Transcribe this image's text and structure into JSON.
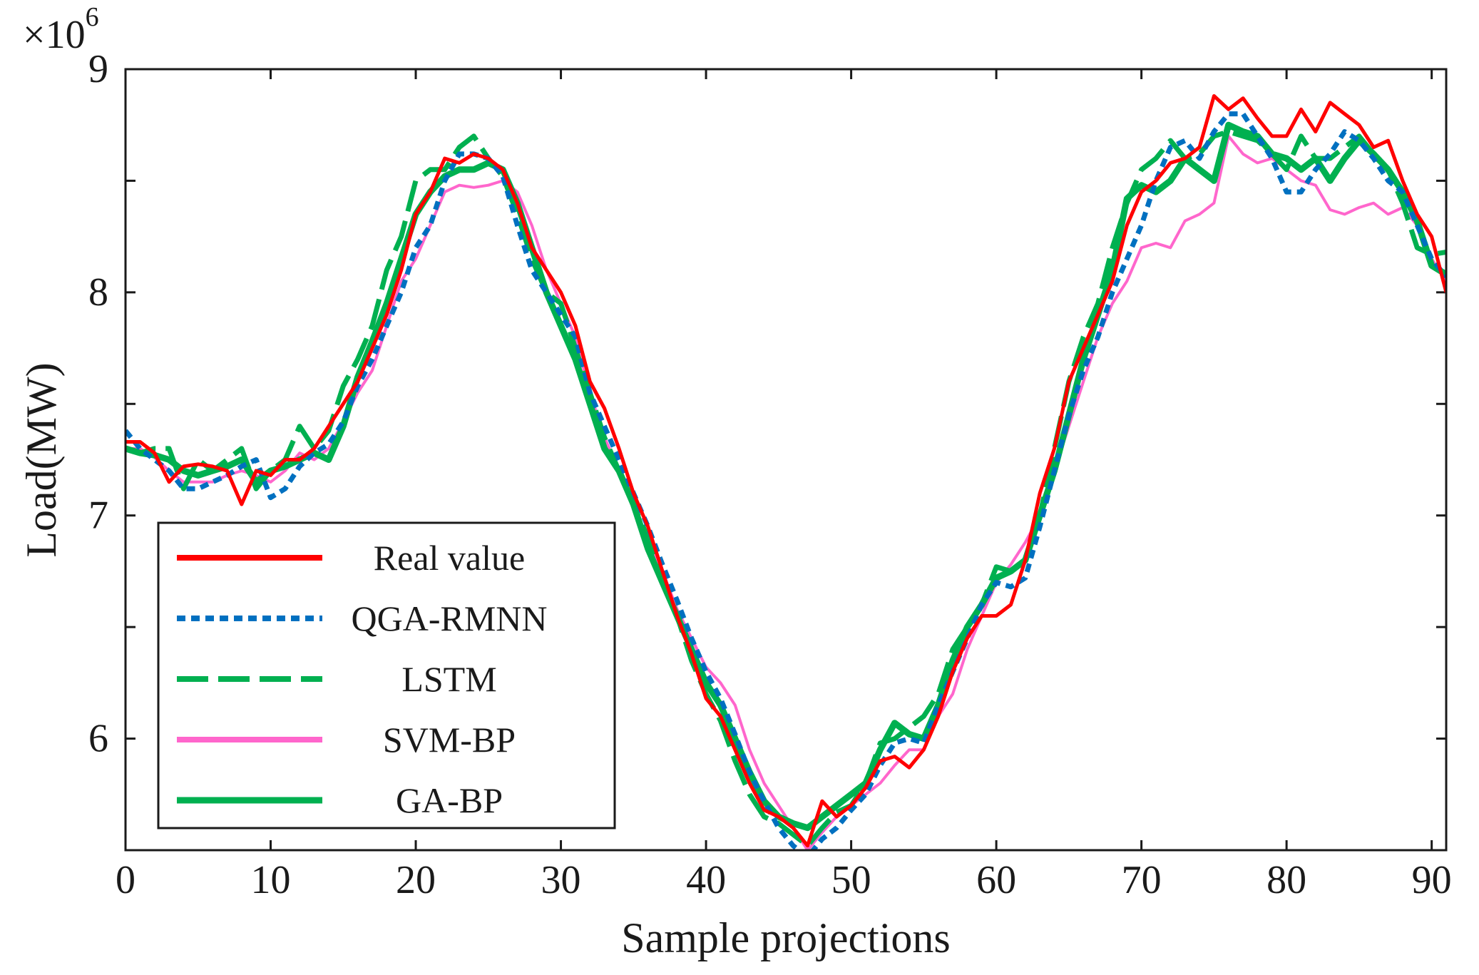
{
  "chart_data": {
    "type": "line",
    "title": "",
    "xlabel": "Sample projections",
    "ylabel": "Load(MW)",
    "y_multiplier_label": "×10",
    "y_multiplier_exponent": "6",
    "xlim": [
      0,
      91
    ],
    "ylim": [
      5.5,
      9.0
    ],
    "x_ticks": [
      0,
      10,
      20,
      30,
      40,
      50,
      60,
      70,
      80,
      90
    ],
    "x_tick_labels": [
      "0",
      "10",
      "20",
      "30",
      "40",
      "50",
      "60",
      "70",
      "80",
      "90"
    ],
    "y_ticks": [
      5.5,
      6.0,
      6.5,
      7.0,
      7.5,
      8.0,
      8.5,
      9.0
    ],
    "y_tick_labels": [
      "",
      "6",
      "",
      "7",
      "",
      "8",
      "",
      "9"
    ],
    "grid": false,
    "legend_position": "bottom-left",
    "x": [
      0,
      1,
      2,
      3,
      4,
      5,
      6,
      7,
      8,
      9,
      10,
      11,
      12,
      13,
      14,
      15,
      16,
      17,
      18,
      19,
      20,
      21,
      22,
      23,
      24,
      25,
      26,
      27,
      28,
      29,
      30,
      31,
      32,
      33,
      34,
      35,
      36,
      37,
      38,
      39,
      40,
      41,
      42,
      43,
      44,
      45,
      46,
      47,
      48,
      49,
      50,
      51,
      52,
      53,
      54,
      55,
      56,
      57,
      58,
      59,
      60,
      61,
      62,
      63,
      64,
      65,
      66,
      67,
      68,
      69,
      70,
      71,
      72,
      73,
      74,
      75,
      76,
      77,
      78,
      79,
      80,
      81,
      82,
      83,
      84,
      85,
      86,
      87,
      88,
      89,
      90,
      91
    ],
    "series": [
      {
        "name": "Real value",
        "color": "#ff0000",
        "style": "solid",
        "values": [
          7.33,
          7.33,
          7.28,
          7.15,
          7.22,
          7.23,
          7.22,
          7.2,
          7.05,
          7.2,
          7.18,
          7.25,
          7.25,
          7.3,
          7.4,
          7.5,
          7.6,
          7.75,
          7.9,
          8.1,
          8.35,
          8.45,
          8.6,
          8.58,
          8.62,
          8.6,
          8.55,
          8.4,
          8.2,
          8.1,
          8.0,
          7.85,
          7.6,
          7.48,
          7.3,
          7.1,
          6.95,
          6.75,
          6.55,
          6.38,
          6.18,
          6.1,
          5.95,
          5.8,
          5.68,
          5.65,
          5.6,
          5.52,
          5.72,
          5.65,
          5.7,
          5.78,
          5.9,
          5.92,
          5.87,
          5.95,
          6.1,
          6.3,
          6.45,
          6.55,
          6.55,
          6.6,
          6.8,
          7.1,
          7.3,
          7.6,
          7.75,
          7.9,
          8.05,
          8.3,
          8.45,
          8.5,
          8.58,
          8.6,
          8.65,
          8.88,
          8.82,
          8.87,
          8.78,
          8.7,
          8.7,
          8.82,
          8.72,
          8.85,
          8.8,
          8.75,
          8.65,
          8.68,
          8.5,
          8.35,
          8.25,
          8.0
        ]
      },
      {
        "name": "QGA-RMNN",
        "color": "#0070c0",
        "style": "dotted",
        "values": [
          7.38,
          7.3,
          7.25,
          7.2,
          7.12,
          7.12,
          7.15,
          7.18,
          7.22,
          7.25,
          7.08,
          7.12,
          7.22,
          7.28,
          7.32,
          7.42,
          7.58,
          7.7,
          7.85,
          8.0,
          8.2,
          8.3,
          8.5,
          8.62,
          8.62,
          8.6,
          8.52,
          8.3,
          8.1,
          8.0,
          7.9,
          7.8,
          7.55,
          7.4,
          7.25,
          7.1,
          6.95,
          6.78,
          6.62,
          6.45,
          6.3,
          6.18,
          6.02,
          5.85,
          5.72,
          5.6,
          5.52,
          5.47,
          5.55,
          5.6,
          5.68,
          5.75,
          5.88,
          5.98,
          6.0,
          5.98,
          6.15,
          6.3,
          6.45,
          6.6,
          6.7,
          6.68,
          6.72,
          6.95,
          7.2,
          7.45,
          7.65,
          7.8,
          8.0,
          8.15,
          8.3,
          8.5,
          8.65,
          8.68,
          8.6,
          8.72,
          8.8,
          8.8,
          8.7,
          8.6,
          8.45,
          8.45,
          8.55,
          8.62,
          8.72,
          8.68,
          8.6,
          8.5,
          8.45,
          8.3,
          8.15,
          8.07
        ]
      },
      {
        "name": "LSTM",
        "color": "#00b050",
        "style": "dashed",
        "values": [
          7.3,
          7.28,
          7.3,
          7.3,
          7.12,
          7.25,
          7.2,
          7.25,
          7.3,
          7.12,
          7.2,
          7.25,
          7.4,
          7.3,
          7.38,
          7.58,
          7.7,
          7.85,
          8.1,
          8.25,
          8.5,
          8.55,
          8.55,
          8.65,
          8.7,
          8.6,
          8.52,
          8.35,
          8.15,
          8.0,
          7.95,
          7.75,
          7.55,
          7.35,
          7.2,
          7.05,
          6.9,
          6.7,
          6.55,
          6.35,
          6.2,
          6.08,
          5.9,
          5.75,
          5.65,
          5.62,
          5.57,
          5.52,
          5.6,
          5.67,
          5.7,
          5.8,
          5.98,
          6.0,
          6.05,
          6.1,
          6.2,
          6.4,
          6.5,
          6.6,
          6.77,
          6.75,
          6.8,
          7.0,
          7.3,
          7.6,
          7.8,
          7.95,
          8.2,
          8.4,
          8.55,
          8.6,
          8.68,
          8.6,
          8.62,
          8.7,
          8.72,
          8.7,
          8.68,
          8.62,
          8.55,
          8.7,
          8.6,
          8.6,
          8.65,
          8.7,
          8.62,
          8.55,
          8.4,
          8.2,
          8.17,
          8.18
        ]
      },
      {
        "name": "SVM-BP",
        "color": "#ff66cc",
        "style": "solid",
        "values": [
          7.3,
          7.3,
          7.26,
          7.2,
          7.15,
          7.15,
          7.15,
          7.18,
          7.2,
          7.18,
          7.15,
          7.2,
          7.28,
          7.25,
          7.3,
          7.42,
          7.55,
          7.65,
          7.85,
          8.05,
          8.15,
          8.3,
          8.45,
          8.48,
          8.47,
          8.48,
          8.5,
          8.45,
          8.3,
          8.1,
          7.95,
          7.8,
          7.55,
          7.35,
          7.2,
          7.05,
          6.88,
          6.75,
          6.58,
          6.45,
          6.32,
          6.25,
          6.15,
          5.95,
          5.8,
          5.7,
          5.6,
          5.5,
          5.58,
          5.65,
          5.7,
          5.75,
          5.8,
          5.88,
          5.95,
          5.95,
          6.1,
          6.2,
          6.4,
          6.55,
          6.7,
          6.78,
          6.88,
          7.0,
          7.2,
          7.4,
          7.6,
          7.8,
          7.95,
          8.05,
          8.2,
          8.22,
          8.2,
          8.32,
          8.35,
          8.4,
          8.7,
          8.62,
          8.58,
          8.6,
          8.55,
          8.5,
          8.48,
          8.37,
          8.35,
          8.38,
          8.4,
          8.35,
          8.38,
          8.3,
          8.15,
          8.05
        ]
      },
      {
        "name": "GA-BP",
        "color": "#00b050",
        "style": "solid",
        "values": [
          7.3,
          7.28,
          7.27,
          7.25,
          7.2,
          7.18,
          7.2,
          7.22,
          7.25,
          7.15,
          7.2,
          7.22,
          7.25,
          7.28,
          7.25,
          7.4,
          7.62,
          7.78,
          7.95,
          8.15,
          8.35,
          8.45,
          8.52,
          8.55,
          8.55,
          8.58,
          8.55,
          8.4,
          8.2,
          8.0,
          7.85,
          7.7,
          7.5,
          7.3,
          7.2,
          7.05,
          6.85,
          6.7,
          6.55,
          6.4,
          6.25,
          6.15,
          6.0,
          5.85,
          5.72,
          5.65,
          5.62,
          5.6,
          5.65,
          5.7,
          5.75,
          5.8,
          5.95,
          6.07,
          6.02,
          6.0,
          6.15,
          6.35,
          6.5,
          6.6,
          6.72,
          6.75,
          6.8,
          7.0,
          7.2,
          7.45,
          7.7,
          7.9,
          8.1,
          8.42,
          8.48,
          8.45,
          8.5,
          8.6,
          8.55,
          8.5,
          8.75,
          8.72,
          8.7,
          8.62,
          8.6,
          8.55,
          8.6,
          8.5,
          8.6,
          8.68,
          8.62,
          8.55,
          8.45,
          8.32,
          8.12,
          8.08
        ]
      }
    ]
  }
}
